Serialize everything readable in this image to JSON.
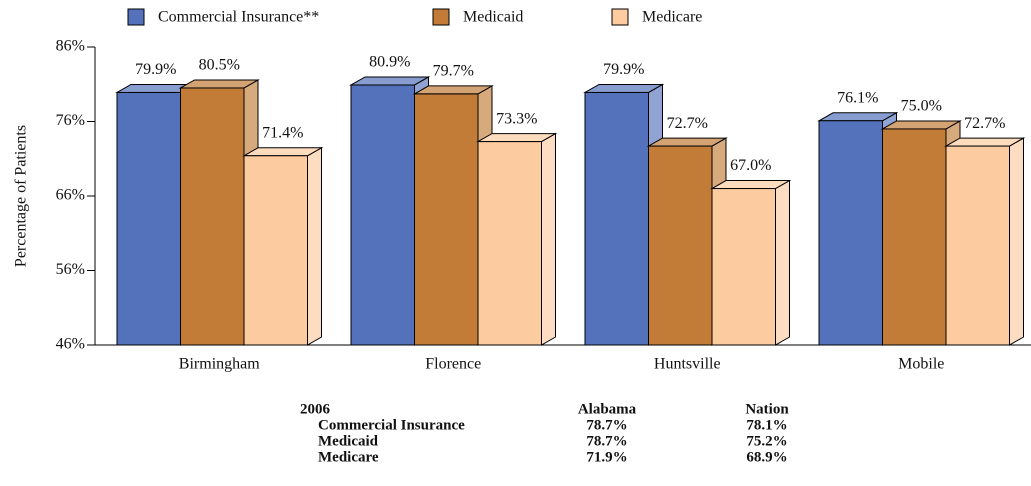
{
  "chart_data": {
    "type": "bar3d",
    "y_label": "Percentage of Patients",
    "categories": [
      "Birmingham",
      "Florence",
      "Huntsville",
      "Mobile"
    ],
    "series": [
      {
        "name": "Commercial Insurance**",
        "color": "#5472bb",
        "values": [
          79.9,
          80.9,
          79.9,
          76.1
        ],
        "value_labels": [
          "79.9%",
          "80.9%",
          "79.9%",
          "76.1%"
        ]
      },
      {
        "name": "Medicaid",
        "color": "#c27c38",
        "values": [
          80.5,
          79.7,
          72.7,
          75.0
        ],
        "value_labels": [
          "80.5%",
          "79.7%",
          "72.7%",
          "75.0%"
        ]
      },
      {
        "name": "Medicare",
        "color": "#fccba0",
        "values": [
          71.4,
          73.3,
          67.0,
          72.7
        ],
        "value_labels": [
          "71.4%",
          "73.3%",
          "67.0%",
          "72.7%"
        ]
      }
    ],
    "ylim": [
      46,
      86
    ],
    "yticks": [
      {
        "value": 46,
        "label": "46%"
      },
      {
        "value": 56,
        "label": "56%"
      },
      {
        "value": 66,
        "label": "66%"
      },
      {
        "value": 76,
        "label": "76%"
      },
      {
        "value": 86,
        "label": "86%"
      }
    ],
    "legend": "top"
  },
  "table": {
    "header": [
      "2006",
      "Alabama",
      "Nation"
    ],
    "rows": [
      [
        "Commercial Insurance",
        "78.7%",
        "78.1%"
      ],
      [
        "Medicaid",
        "78.7%",
        "75.2%"
      ],
      [
        "Medicare",
        "71.9%",
        "68.9%"
      ]
    ]
  }
}
